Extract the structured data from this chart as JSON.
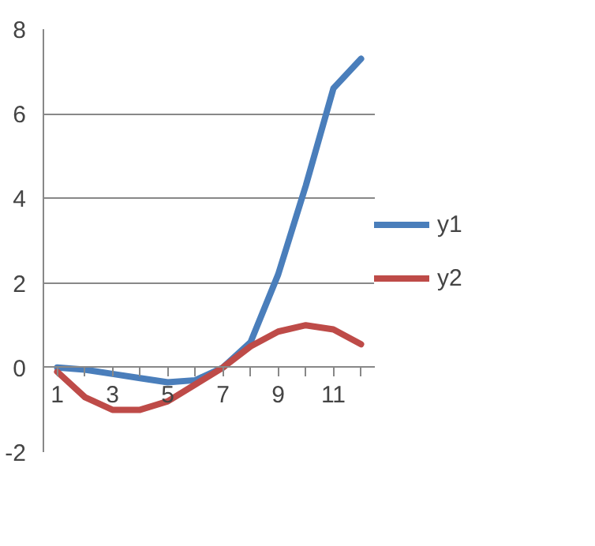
{
  "chart_data": {
    "type": "line",
    "categories": [
      "1",
      null,
      "3",
      null,
      "5",
      null,
      "7",
      null,
      "9",
      null,
      "11",
      null
    ],
    "series": [
      {
        "name": "y1",
        "color": "#4a7ebb",
        "values": [
          0,
          -0.05,
          -0.15,
          -0.25,
          -0.35,
          -0.3,
          0,
          0.6,
          2.2,
          4.3,
          6.6,
          7.3
        ]
      },
      {
        "name": "y2",
        "color": "#be4b48",
        "values": [
          -0.1,
          -0.7,
          -1.0,
          -1.0,
          -0.8,
          -0.4,
          0,
          0.5,
          0.85,
          1.0,
          0.9,
          0.55
        ]
      }
    ],
    "ylim": [
      -2,
      8
    ],
    "yticks": [
      -2,
      0,
      2,
      4,
      6,
      8
    ],
    "grid": "y",
    "legend": "right",
    "marker": "none",
    "line_style": "solid"
  }
}
